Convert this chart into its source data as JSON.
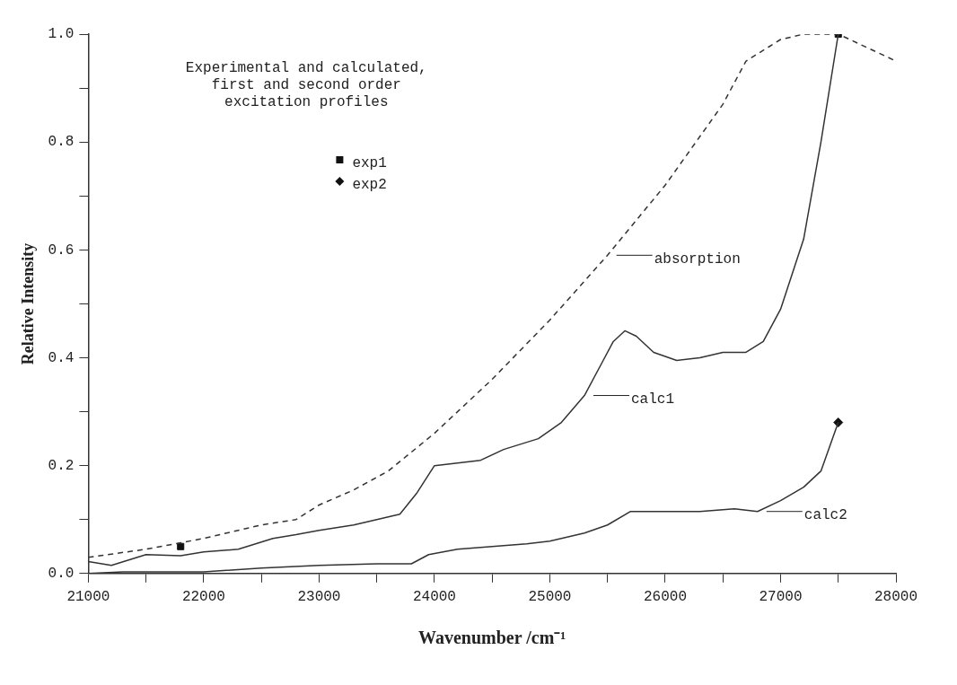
{
  "chart_data": {
    "type": "line",
    "title": "Experimental and calculated,\nfirst and second order\nexcitation profiles",
    "xlabel": "Wavenumber /cm⁻¹",
    "ylabel": "Relative Intensity",
    "xlim": [
      21000,
      28000
    ],
    "ylim": [
      0,
      1
    ],
    "xticks": [
      21000,
      {
        "value": 21500,
        "label": null
      },
      22000,
      {
        "value": 22500,
        "label": null
      },
      23000,
      {
        "value": 23500,
        "label": null
      },
      24000,
      {
        "value": 24500,
        "label": null
      },
      25000,
      {
        "value": 25500,
        "label": null
      },
      26000,
      {
        "value": 26500,
        "label": null
      },
      27000,
      {
        "value": 27500,
        "label": null
      },
      28000
    ],
    "yticks": [
      {
        "value": 0,
        "label": "0.0"
      },
      {
        "value": 0.1,
        "label": null
      },
      {
        "value": 0.2,
        "label": "0.2"
      },
      {
        "value": 0.3,
        "label": null
      },
      {
        "value": 0.4,
        "label": "0.4"
      },
      {
        "value": 0.5,
        "label": null
      },
      {
        "value": 0.6,
        "label": "0.6"
      },
      {
        "value": 0.7,
        "label": null
      },
      {
        "value": 0.8,
        "label": "0.8"
      },
      {
        "value": 0.9,
        "label": null
      },
      {
        "value": 1,
        "label": "1.0"
      }
    ],
    "grid": false,
    "legend": "top left",
    "series": [
      {
        "name": "absorption",
        "color": "#333333",
        "line_style": "dashed",
        "marker": "none",
        "x": [
          21000,
          21500,
          22000,
          22500,
          22800,
          23000,
          23300,
          23600,
          24000,
          24500,
          25000,
          25500,
          26000,
          26500,
          26700,
          27000,
          27200,
          27500,
          28000
        ],
        "values": [
          0.03,
          0.045,
          0.065,
          0.09,
          0.1,
          0.127,
          0.155,
          0.19,
          0.26,
          0.36,
          0.47,
          0.59,
          0.72,
          0.87,
          0.95,
          0.99,
          1.0,
          1.0,
          0.95
        ]
      },
      {
        "name": "calc1",
        "color": "#333333",
        "line_style": "solid",
        "marker": "none",
        "x": [
          21000,
          21200,
          21500,
          21800,
          22000,
          22300,
          22600,
          22800,
          23000,
          23300,
          23500,
          23700,
          23850,
          24000,
          24200,
          24400,
          24600,
          24900,
          25100,
          25300,
          25450,
          25550,
          25650,
          25750,
          25900,
          26100,
          26300,
          26500,
          26700,
          26850,
          27000,
          27200,
          27350,
          27500
        ],
        "values": [
          0.022,
          0.015,
          0.035,
          0.033,
          0.04,
          0.045,
          0.065,
          0.072,
          0.08,
          0.09,
          0.1,
          0.11,
          0.15,
          0.2,
          0.205,
          0.21,
          0.23,
          0.25,
          0.28,
          0.33,
          0.39,
          0.43,
          0.45,
          0.44,
          0.41,
          0.395,
          0.4,
          0.41,
          0.41,
          0.43,
          0.49,
          0.62,
          0.8,
          1.0
        ]
      },
      {
        "name": "calc2",
        "color": "#333333",
        "line_style": "solid",
        "marker": "none",
        "x": [
          21000,
          21300,
          22000,
          22500,
          23000,
          23500,
          23800,
          23950,
          24200,
          24500,
          24800,
          25000,
          25300,
          25500,
          25700,
          26000,
          26300,
          26600,
          26800,
          27000,
          27200,
          27350,
          27450,
          27500
        ],
        "values": [
          0.0,
          0.003,
          0.003,
          0.01,
          0.015,
          0.018,
          0.018,
          0.035,
          0.045,
          0.05,
          0.055,
          0.06,
          0.075,
          0.09,
          0.115,
          0.115,
          0.115,
          0.12,
          0.115,
          0.135,
          0.16,
          0.19,
          0.25,
          0.28
        ]
      },
      {
        "name": "exp1",
        "type": "scatter",
        "color": "#111111",
        "marker": "square",
        "x": [
          21800,
          27500
        ],
        "values": [
          0.05,
          1.0
        ]
      },
      {
        "name": "exp2",
        "type": "scatter",
        "color": "#111111",
        "marker": "diamond",
        "x": [
          27500
        ],
        "values": [
          0.28
        ]
      }
    ]
  }
}
